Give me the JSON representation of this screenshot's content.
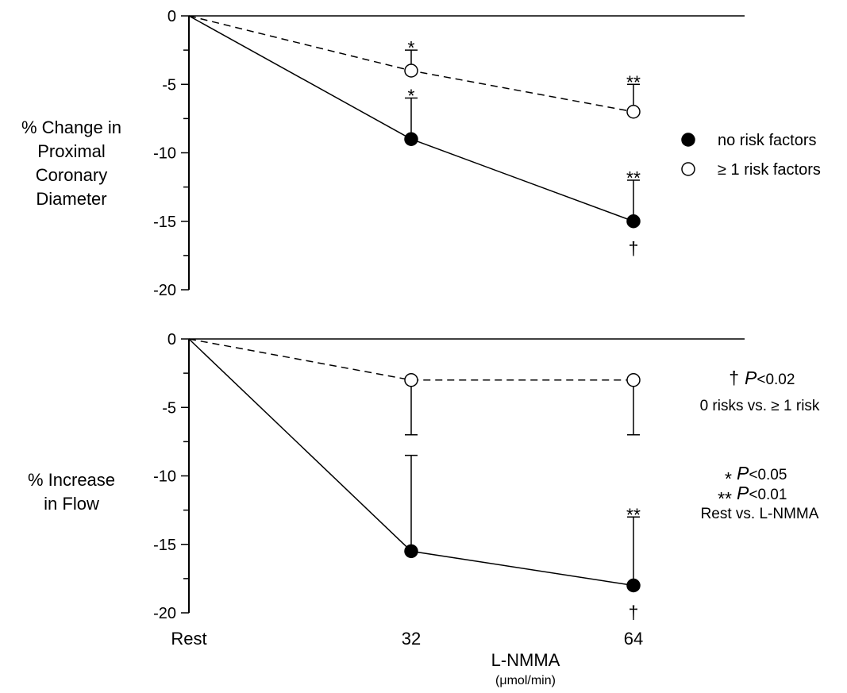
{
  "chart_data": [
    {
      "type": "line",
      "panel": "top",
      "ylabel_lines": [
        "% Change in",
        "Proximal",
        "Coronary",
        "Diameter"
      ],
      "ylim": [
        -20,
        0
      ],
      "yticks": [
        0,
        -5,
        -10,
        -15,
        -20
      ],
      "yticklabels": [
        "0",
        "-5",
        "-10",
        "-15",
        "-20"
      ],
      "categories": [
        "Rest",
        "32",
        "64"
      ],
      "grid": false,
      "series": [
        {
          "name": "no risk factors",
          "marker": "filled-circle",
          "linestyle": "solid",
          "values": [
            0,
            -9,
            -15
          ],
          "error_up": [
            null,
            3,
            3
          ],
          "sig_above": [
            null,
            "*",
            "**"
          ],
          "sig_below": [
            null,
            null,
            "†"
          ]
        },
        {
          "name": "≥ 1 risk factors",
          "marker": "open-circle",
          "linestyle": "dashed",
          "values": [
            0,
            -4,
            -7
          ],
          "error_up": [
            null,
            1.5,
            2
          ],
          "sig_above": [
            null,
            "*",
            "**"
          ],
          "sig_below": [
            null,
            null,
            null
          ]
        }
      ]
    },
    {
      "type": "line",
      "panel": "bottom",
      "ylabel_lines": [
        "% Increase",
        "in Flow"
      ],
      "ylim": [
        -20,
        0
      ],
      "yticks": [
        0,
        -5,
        -10,
        -15,
        -20
      ],
      "yticklabels": [
        "0",
        "-5",
        "-10",
        "-15",
        "-20"
      ],
      "categories": [
        "Rest",
        "32",
        "64"
      ],
      "xlabel": "L-NMMA",
      "xlabel_unit": "(μmol/min)",
      "grid": false,
      "series": [
        {
          "name": "no risk factors",
          "marker": "filled-circle",
          "linestyle": "solid",
          "values": [
            0,
            -15.5,
            -18
          ],
          "error_up": [
            null,
            7,
            5
          ],
          "sig_above": [
            null,
            null,
            "**"
          ],
          "sig_below": [
            null,
            null,
            "†"
          ]
        },
        {
          "name": "≥ 1 risk factors",
          "marker": "open-circle",
          "linestyle": "dashed",
          "values": [
            0,
            -3,
            -3
          ],
          "error_down": [
            null,
            4,
            4
          ],
          "sig_above": [
            null,
            null,
            null
          ],
          "sig_below": [
            null,
            null,
            null
          ]
        }
      ]
    }
  ],
  "legend": {
    "items": [
      {
        "label": "no risk factors",
        "marker": "filled-circle"
      },
      {
        "label": "≥ 1 risk factors",
        "marker": "open-circle"
      }
    ]
  },
  "notes": {
    "dagger_symbol": "†",
    "dagger_p": "P",
    "dagger_value": "<0.02",
    "dagger_desc": "0 risks vs. ≥ 1 risk",
    "single_star": "*",
    "single_p": "P",
    "single_value": "<0.05",
    "double_star": "**",
    "double_p": "P",
    "double_value": "<0.01",
    "star_desc": "Rest vs. L-NMMA"
  }
}
